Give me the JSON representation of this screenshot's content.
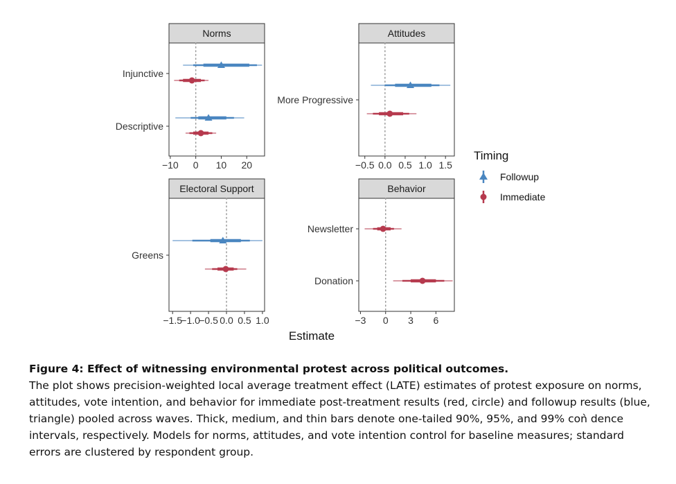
{
  "colors": {
    "followup": "#4a86c0",
    "immediate": "#b63a4e",
    "strip": "#d9d9d9",
    "panel_border": "#333333",
    "zero_line": "#999999"
  },
  "legend": {
    "title": "Timing",
    "items": [
      {
        "key": "followup",
        "label": "Followup",
        "shape": "triangle"
      },
      {
        "key": "immediate",
        "label": "Immediate",
        "shape": "circle"
      }
    ]
  },
  "x_axis_title": "Estimate",
  "chart_data": [
    {
      "type": "forest",
      "title": "Norms",
      "xlim": [
        -10.5,
        27
      ],
      "ticks": [
        -10,
        0,
        10,
        20
      ],
      "tick_labels": [
        "−10",
        "0",
        "10",
        "20"
      ],
      "rows": [
        {
          "label": "Injunctive",
          "series": [
            {
              "key": "followup",
              "est": 10,
              "ci90": [
                3,
                21
              ],
              "ci95": [
                -1,
                24
              ],
              "ci99": [
                -5,
                26
              ]
            },
            {
              "key": "immediate",
              "est": -1.5,
              "ci90": [
                -5,
                2
              ],
              "ci95": [
                -6.5,
                3.5
              ],
              "ci99": [
                -8.5,
                5
              ]
            }
          ]
        },
        {
          "label": "Descriptive",
          "series": [
            {
              "key": "followup",
              "est": 5,
              "ci90": [
                1,
                12
              ],
              "ci95": [
                -2,
                15
              ],
              "ci99": [
                -8,
                19
              ]
            },
            {
              "key": "immediate",
              "est": 2,
              "ci90": [
                -1,
                5
              ],
              "ci95": [
                -2.5,
                6.5
              ],
              "ci99": [
                -4,
                8
              ]
            }
          ]
        }
      ]
    },
    {
      "type": "forest",
      "title": "Attitudes",
      "xlim": [
        -0.65,
        1.72
      ],
      "ticks": [
        -0.5,
        0,
        0.5,
        1,
        1.5
      ],
      "tick_labels": [
        "−0.5",
        "0.0",
        "0.5",
        "1.0",
        "1.5"
      ],
      "rows": [
        {
          "label": "More Progressive",
          "series": [
            {
              "key": "followup",
              "est": 0.63,
              "ci90": [
                0.25,
                1.15
              ],
              "ci95": [
                0.0,
                1.35
              ],
              "ci99": [
                -0.35,
                1.62
              ]
            },
            {
              "key": "immediate",
              "est": 0.12,
              "ci90": [
                -0.15,
                0.45
              ],
              "ci95": [
                -0.3,
                0.6
              ],
              "ci99": [
                -0.45,
                0.78
              ]
            }
          ]
        }
      ]
    },
    {
      "type": "forest",
      "title": "Electoral Support",
      "xlim": [
        -1.6,
        1.06
      ],
      "ticks": [
        -1.5,
        -1.0,
        -0.5,
        0,
        0.5,
        1.0
      ],
      "tick_labels": [
        "−1.5",
        "−1.0",
        "−0.5",
        "0.0",
        "0.5",
        "1.0"
      ],
      "rows": [
        {
          "label": "Greens",
          "series": [
            {
              "key": "followup",
              "est": -0.1,
              "ci90": [
                -0.45,
                0.4
              ],
              "ci95": [
                -0.95,
                0.65
              ],
              "ci99": [
                -1.5,
                1.0
              ]
            },
            {
              "key": "immediate",
              "est": -0.02,
              "ci90": [
                -0.25,
                0.2
              ],
              "ci95": [
                -0.4,
                0.3
              ],
              "ci99": [
                -0.6,
                0.55
              ]
            }
          ]
        }
      ]
    },
    {
      "type": "forest",
      "title": "Behavior",
      "xlim": [
        -3.2,
        8.2
      ],
      "ticks": [
        -3,
        0,
        3,
        6
      ],
      "tick_labels": [
        "−3",
        "0",
        "3",
        "6"
      ],
      "rows": [
        {
          "label": "Newsletter",
          "series": [
            {
              "key": "immediate",
              "est": -0.3,
              "ci90": [
                -1.0,
                0.6
              ],
              "ci95": [
                -1.5,
                1.0
              ],
              "ci99": [
                -2.5,
                1.9
              ]
            }
          ]
        },
        {
          "label": "Donation",
          "series": [
            {
              "key": "immediate",
              "est": 4.4,
              "ci90": [
                3.0,
                6.0
              ],
              "ci95": [
                2.0,
                7.0
              ],
              "ci99": [
                0.9,
                8.0
              ]
            }
          ]
        }
      ]
    }
  ],
  "caption": {
    "title": "Figure 4: Effect of witnessing environmental protest across political outcomes.",
    "body": "The plot shows precision-weighted local average treatment effect (LATE) estimates of protest exposure on norms, attitudes, vote intention, and behavior for immediate post-treatment results (red, circle) and followup results (blue, triangle) pooled across waves. Thick, medium, and thin bars denote one-tailed 90%, 95%, and 99% coǹ dence intervals, respectively. Models for norms, attitudes, and vote intention control for baseline measures; standard errors are clustered by respondent group."
  }
}
